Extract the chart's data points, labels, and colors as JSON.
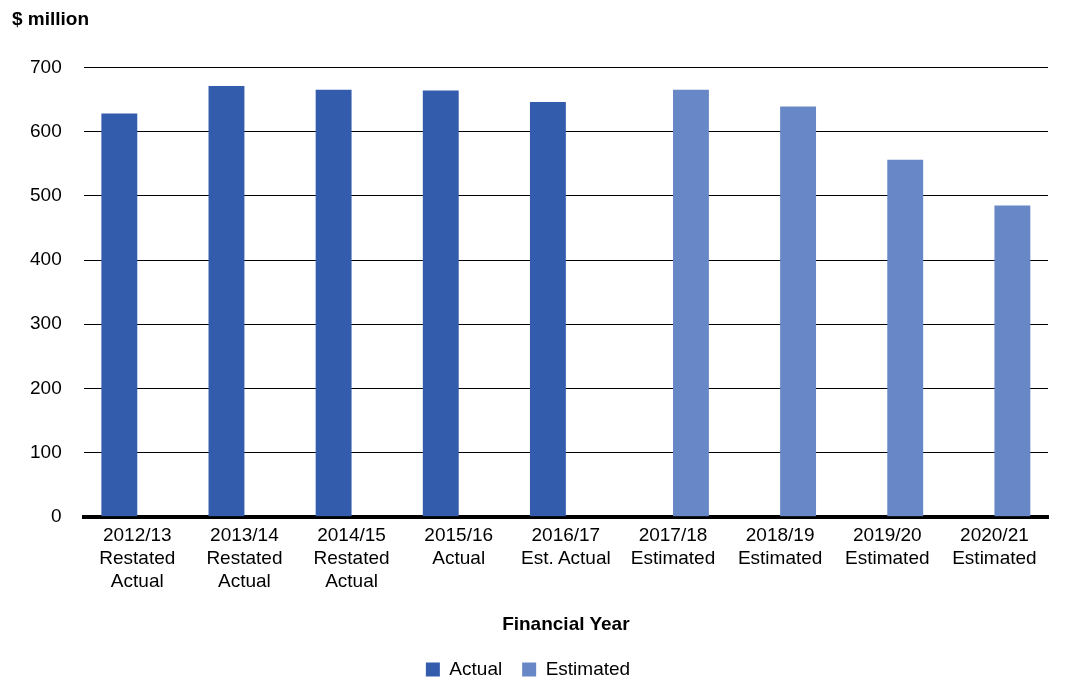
{
  "chart_data": {
    "type": "bar",
    "ylabel": "$ million",
    "xlabel": "Financial Year",
    "categories": [
      "2012/13\nRestated\nActual",
      "2013/14\nRestated\nActual",
      "2014/15\nRestated\nActual",
      "2015/16\nActual",
      "2016/17\nEst. Actual",
      "2017/18\nEstimated",
      "2018/19\nEstimated",
      "2019/20\nEstimated",
      "2020/21\nEstimated"
    ],
    "series": [
      {
        "name": "Actual",
        "color": "#335cad",
        "values": [
          628,
          671,
          665,
          664,
          646,
          null,
          null,
          null,
          null
        ]
      },
      {
        "name": "Estimated",
        "color": "#6787c6",
        "values": [
          null,
          null,
          null,
          null,
          null,
          665,
          639,
          556,
          485
        ]
      }
    ],
    "ylim": [
      0,
      700
    ],
    "yticks": [
      0,
      100,
      200,
      300,
      400,
      500,
      600,
      700
    ],
    "grid": "y",
    "legend": "bottom"
  }
}
